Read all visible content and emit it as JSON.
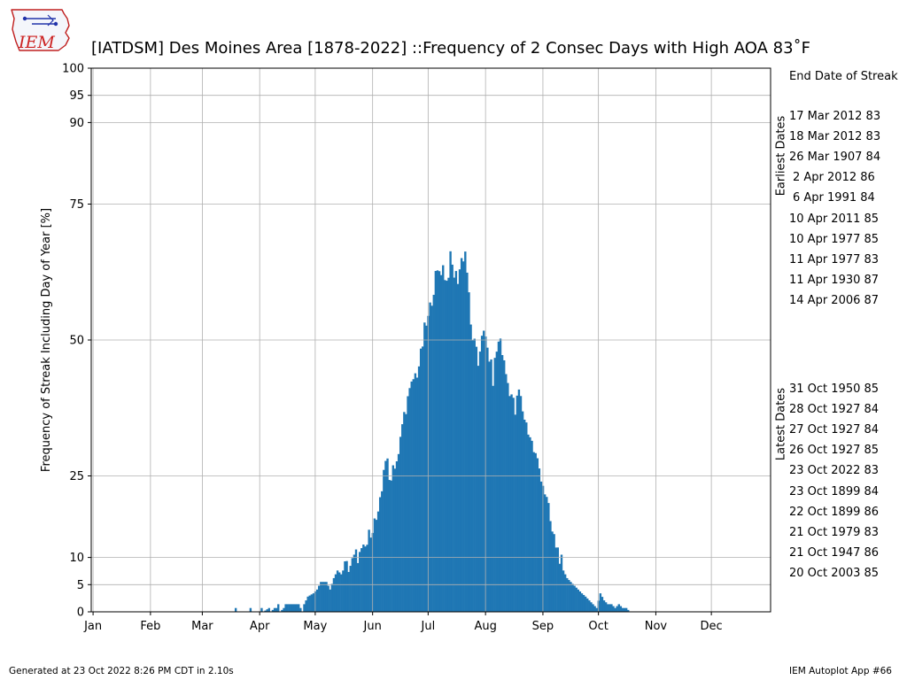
{
  "logo": {
    "text": "IEM",
    "icon": "iem-iowa-state-logo"
  },
  "footer": {
    "generated": "Generated at 23 Oct 2022 8:26 PM CDT in 2.10s",
    "app": "IEM Autoplot App #66"
  },
  "side_panel": {
    "header": "End Date of Streak",
    "earliest_label": "Earliest Dates",
    "latest_label": "Latest Dates",
    "earliest": [
      "17 Mar 2012 83",
      "18 Mar 2012 83",
      "26 Mar 1907 84",
      "2 Apr 2012 86",
      "6 Apr 1991 84",
      "10 Apr 2011 85",
      "10 Apr 1977 85",
      "11 Apr 1977 83",
      "11 Apr 1930 87",
      "14 Apr 2006 87"
    ],
    "latest": [
      "31 Oct 1950 85",
      "28 Oct 1927 84",
      "27 Oct 1927 84",
      "26 Oct 1927 85",
      "23 Oct 2022 83",
      "23 Oct 1899 84",
      "22 Oct 1899 86",
      "21 Oct 1979 83",
      "21 Oct 1947 86",
      "20 Oct 2003 85"
    ]
  },
  "chart_data": {
    "type": "bar",
    "title": "[IATDSM] Des Moines Area [1878-2022] ::Frequency of 2 Consec Days with High AOA 83$^\\circ$F",
    "title_display": "[IATDSM] Des Moines Area [1878-2022] ::Frequency of 2 Consec Days with High AOA 83˚F",
    "xlabel": "",
    "ylabel": "Frequency of Streak Including Day of Year [%]",
    "x_tick_labels": [
      "Jan",
      "Feb",
      "Mar",
      "Apr",
      "May",
      "Jun",
      "Jul",
      "Aug",
      "Sep",
      "Oct",
      "Nov",
      "Dec"
    ],
    "x_tick_days": [
      1,
      32,
      60,
      91,
      121,
      152,
      182,
      213,
      244,
      274,
      305,
      335
    ],
    "xlim": [
      0,
      367
    ],
    "y_ticks": [
      0,
      5,
      10,
      25,
      50,
      75,
      90,
      95,
      100
    ],
    "ylim": [
      0,
      100
    ],
    "grid": true,
    "bar_color": "#1f77b4",
    "series_note": "values are percent per day-of-year",
    "anchors": [
      [
        77,
        0
      ],
      [
        78,
        0.7
      ],
      [
        79,
        0
      ],
      [
        85,
        0
      ],
      [
        86,
        0.7
      ],
      [
        87,
        0
      ],
      [
        91,
        0
      ],
      [
        92,
        0.7
      ],
      [
        93,
        0
      ],
      [
        96,
        0.7
      ],
      [
        97,
        0
      ],
      [
        99,
        0.7
      ],
      [
        100,
        0.7
      ],
      [
        101,
        1.4
      ],
      [
        102,
        0
      ],
      [
        104,
        0.7
      ],
      [
        105,
        1.4
      ],
      [
        107,
        1.4
      ],
      [
        110,
        1.4
      ],
      [
        112,
        1.4
      ],
      [
        114,
        0
      ],
      [
        115,
        1.4
      ],
      [
        117,
        2.8
      ],
      [
        120,
        3.4
      ],
      [
        122,
        4.1
      ],
      [
        124,
        5.5
      ],
      [
        127,
        5.5
      ],
      [
        129,
        4.1
      ],
      [
        131,
        6.2
      ],
      [
        133,
        7.6
      ],
      [
        135,
        6.9
      ],
      [
        137,
        8.3
      ],
      [
        139,
        8.3
      ],
      [
        141,
        9.0
      ],
      [
        143,
        10.3
      ],
      [
        145,
        10.3
      ],
      [
        147,
        11.0
      ],
      [
        149,
        12.4
      ],
      [
        151,
        15.2
      ],
      [
        153,
        16.5
      ],
      [
        155,
        17.2
      ],
      [
        157,
        22.1
      ],
      [
        158,
        26.9
      ],
      [
        159,
        28.3
      ],
      [
        160,
        26.9
      ],
      [
        161,
        24.1
      ],
      [
        163,
        26.9
      ],
      [
        166,
        28.3
      ],
      [
        168,
        34.5
      ],
      [
        170,
        37.9
      ],
      [
        172,
        40.0
      ],
      [
        174,
        42.8
      ],
      [
        176,
        44.1
      ],
      [
        178,
        46.9
      ],
      [
        180,
        51.7
      ],
      [
        182,
        53.8
      ],
      [
        184,
        57.9
      ],
      [
        186,
        61.4
      ],
      [
        188,
        62.8
      ],
      [
        190,
        63.4
      ],
      [
        192,
        60.7
      ],
      [
        194,
        64.8
      ],
      [
        196,
        62.1
      ],
      [
        198,
        61.4
      ],
      [
        200,
        64.8
      ],
      [
        202,
        66.2
      ],
      [
        203,
        62.8
      ],
      [
        205,
        52.4
      ],
      [
        207,
        49.0
      ],
      [
        209,
        45.5
      ],
      [
        211,
        51.7
      ],
      [
        213,
        49.7
      ],
      [
        215,
        46.9
      ],
      [
        217,
        42.8
      ],
      [
        219,
        48.3
      ],
      [
        221,
        50.3
      ],
      [
        223,
        45.5
      ],
      [
        225,
        42.1
      ],
      [
        227,
        40.0
      ],
      [
        229,
        36.6
      ],
      [
        231,
        40.7
      ],
      [
        233,
        37.2
      ],
      [
        235,
        34.5
      ],
      [
        237,
        32.4
      ],
      [
        239,
        29.7
      ],
      [
        241,
        27.6
      ],
      [
        243,
        25.2
      ],
      [
        245,
        22.1
      ],
      [
        247,
        18.6
      ],
      [
        249,
        14.5
      ],
      [
        251,
        12.4
      ],
      [
        253,
        10.3
      ],
      [
        255,
        7.6
      ],
      [
        257,
        6.2
      ],
      [
        259,
        5.5
      ],
      [
        261,
        4.8
      ],
      [
        263,
        4.1
      ],
      [
        265,
        3.4
      ],
      [
        267,
        2.8
      ],
      [
        269,
        2.1
      ],
      [
        271,
        1.4
      ],
      [
        273,
        0.7
      ],
      [
        275,
        3.4
      ],
      [
        277,
        2.1
      ],
      [
        279,
        1.4
      ],
      [
        281,
        1.4
      ],
      [
        283,
        0.7
      ],
      [
        285,
        1.4
      ],
      [
        287,
        0.7
      ],
      [
        289,
        0.7
      ],
      [
        291,
        0
      ],
      [
        292,
        0
      ]
    ]
  }
}
